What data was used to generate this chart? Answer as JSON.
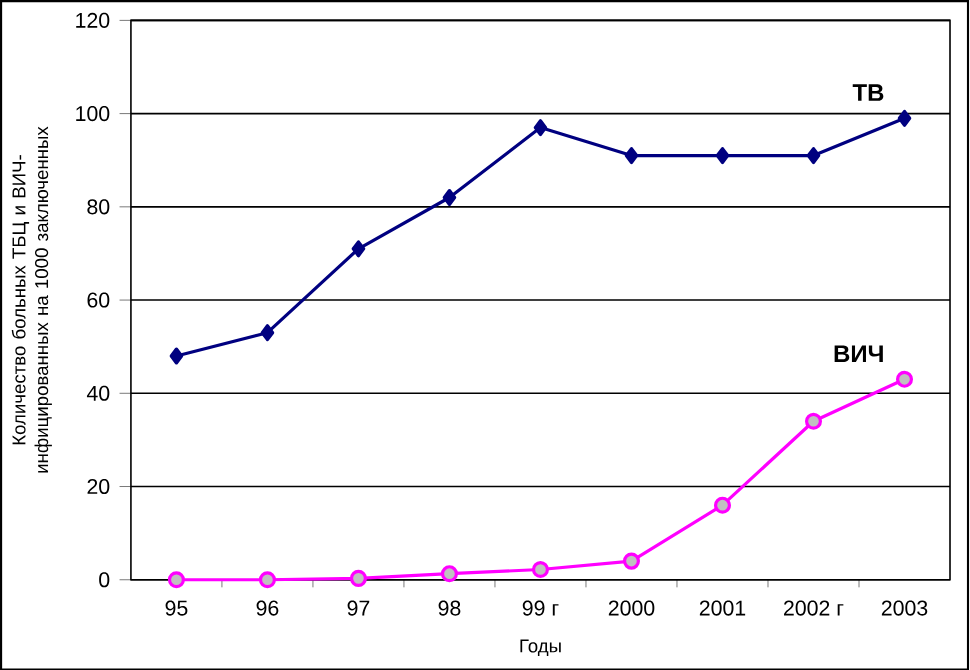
{
  "chart_data": {
    "type": "line",
    "xlabel": "Годы",
    "ylabel": "Количество больных ТБЦ и ВИЧ-инфицированных на 1000 заключенных",
    "categories": [
      "95",
      "96",
      "97",
      "98",
      "99 г",
      "2000",
      "2001",
      "2002 г",
      "2003"
    ],
    "series": [
      {
        "name": "ТВ",
        "color": "#000080",
        "marker": "diamond",
        "values": [
          48,
          53,
          71,
          82,
          97,
          91,
          91,
          91,
          99
        ]
      },
      {
        "name": "ВИЧ",
        "color": "#ff00ff",
        "marker": "circle",
        "values": [
          0,
          0,
          0.3,
          1.3,
          2.2,
          4,
          16,
          34,
          43
        ]
      }
    ],
    "ylim": [
      0,
      120
    ],
    "yticks": [
      0,
      20,
      40,
      60,
      80,
      100,
      120
    ],
    "grid": "y",
    "legend": false,
    "line_style": "solid"
  }
}
